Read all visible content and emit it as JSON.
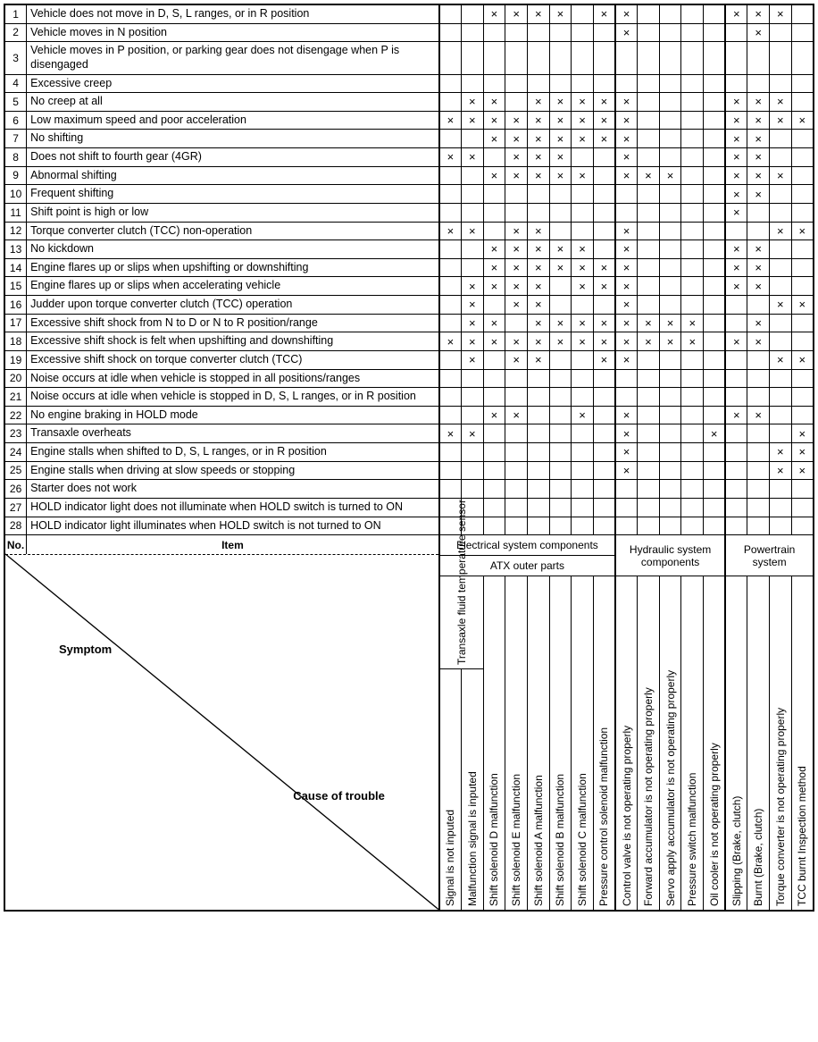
{
  "mark_glyph": "×",
  "colors": {
    "fg": "#000000",
    "bg": "#ffffff"
  },
  "footer": {
    "no_label": "No.",
    "item_label": "Item",
    "symptom_label": "Symptom",
    "cause_label": "Cause of trouble",
    "group1": "Electrical system components",
    "group1_sub": "ATX outer parts",
    "group2": "Hydraulic system components",
    "group3": "Powertrain system"
  },
  "causes": [
    {
      "label": "Signal is not inputed",
      "sub": "Transaxle fluid temperature sensor",
      "group": 1
    },
    {
      "label": "Malfunction signal is inputed",
      "sub": "Transaxle fluid temperature sensor",
      "group": 1
    },
    {
      "label": "Shift solenoid D malfunction",
      "group": 1
    },
    {
      "label": "Shift solenoid E malfunction",
      "group": 1
    },
    {
      "label": "Shift solenoid A malfunction",
      "group": 1
    },
    {
      "label": "Shift solenoid B malfunction",
      "group": 1
    },
    {
      "label": "Shift solenoid C malfunction",
      "group": 1
    },
    {
      "label": "Pressure control solenoid malfunction",
      "group": 1
    },
    {
      "label": "Control valve is not operating properly",
      "group": 2
    },
    {
      "label": "Forward accumulator is not operating properly",
      "group": 2
    },
    {
      "label": "Servo apply accumulator is not operating properly",
      "group": 2
    },
    {
      "label": "Pressure switch malfunction",
      "group": 2
    },
    {
      "label": "Oil cooler is not operating properly",
      "group": 2
    },
    {
      "label": "Slipping (Brake, clutch)",
      "group": 3
    },
    {
      "label": "Burnt (Brake, clutch)",
      "group": 3
    },
    {
      "label": "Torque converter is not operating properly",
      "group": 3
    },
    {
      "label": "TCC burnt Inspection method",
      "group": 3
    }
  ],
  "rows": [
    {
      "n": "1",
      "item": "Vehicle does not move in D, S, L ranges, or in R position",
      "x": [
        0,
        0,
        1,
        1,
        1,
        1,
        0,
        1,
        1,
        0,
        0,
        0,
        0,
        1,
        1,
        1,
        0
      ]
    },
    {
      "n": "2",
      "item": "Vehicle moves in N position",
      "x": [
        0,
        0,
        0,
        0,
        0,
        0,
        0,
        0,
        1,
        0,
        0,
        0,
        0,
        0,
        1,
        0,
        0
      ]
    },
    {
      "n": "3",
      "item": "Vehicle moves in P position, or parking gear does not disengage when P is disengaged",
      "x": [
        0,
        0,
        0,
        0,
        0,
        0,
        0,
        0,
        0,
        0,
        0,
        0,
        0,
        0,
        0,
        0,
        0
      ]
    },
    {
      "n": "4",
      "item": "Excessive creep",
      "x": [
        0,
        0,
        0,
        0,
        0,
        0,
        0,
        0,
        0,
        0,
        0,
        0,
        0,
        0,
        0,
        0,
        0
      ]
    },
    {
      "n": "5",
      "item": "No creep at all",
      "x": [
        0,
        1,
        1,
        0,
        1,
        1,
        1,
        1,
        1,
        0,
        0,
        0,
        0,
        1,
        1,
        1,
        0
      ]
    },
    {
      "n": "6",
      "item": "Low maximum speed and poor acceleration",
      "x": [
        1,
        1,
        1,
        1,
        1,
        1,
        1,
        1,
        1,
        0,
        0,
        0,
        0,
        1,
        1,
        1,
        1
      ]
    },
    {
      "n": "7",
      "item": "No shifting",
      "x": [
        0,
        0,
        1,
        1,
        1,
        1,
        1,
        1,
        1,
        0,
        0,
        0,
        0,
        1,
        1,
        0,
        0
      ]
    },
    {
      "n": "8",
      "item": "Does not shift to fourth gear (4GR)",
      "x": [
        1,
        1,
        0,
        1,
        1,
        1,
        0,
        0,
        1,
        0,
        0,
        0,
        0,
        1,
        1,
        0,
        0
      ]
    },
    {
      "n": "9",
      "item": "Abnormal shifting",
      "x": [
        0,
        0,
        1,
        1,
        1,
        1,
        1,
        0,
        1,
        1,
        1,
        0,
        0,
        1,
        1,
        1,
        0
      ]
    },
    {
      "n": "10",
      "item": "Frequent shifting",
      "x": [
        0,
        0,
        0,
        0,
        0,
        0,
        0,
        0,
        0,
        0,
        0,
        0,
        0,
        1,
        1,
        0,
        0
      ]
    },
    {
      "n": "11",
      "item": "Shift point is high or low",
      "x": [
        0,
        0,
        0,
        0,
        0,
        0,
        0,
        0,
        0,
        0,
        0,
        0,
        0,
        1,
        0,
        0,
        0
      ]
    },
    {
      "n": "12",
      "item": "Torque converter clutch (TCC) non-operation",
      "x": [
        1,
        1,
        0,
        1,
        1,
        0,
        0,
        0,
        1,
        0,
        0,
        0,
        0,
        0,
        0,
        1,
        1
      ]
    },
    {
      "n": "13",
      "item": "No kickdown",
      "x": [
        0,
        0,
        1,
        1,
        1,
        1,
        1,
        0,
        1,
        0,
        0,
        0,
        0,
        1,
        1,
        0,
        0
      ]
    },
    {
      "n": "14",
      "item": "Engine flares up or slips when upshifting or downshifting",
      "x": [
        0,
        0,
        1,
        1,
        1,
        1,
        1,
        1,
        1,
        0,
        0,
        0,
        0,
        1,
        1,
        0,
        0
      ]
    },
    {
      "n": "15",
      "item": "Engine flares up or slips when accelerating vehicle",
      "x": [
        0,
        1,
        1,
        1,
        1,
        0,
        1,
        1,
        1,
        0,
        0,
        0,
        0,
        1,
        1,
        0,
        0
      ]
    },
    {
      "n": "16",
      "item": "Judder upon torque converter clutch (TCC) operation",
      "x": [
        0,
        1,
        0,
        1,
        1,
        0,
        0,
        0,
        1,
        0,
        0,
        0,
        0,
        0,
        0,
        1,
        1
      ]
    },
    {
      "n": "17",
      "item": "Excessive shift shock from N to D or N to R position/range",
      "x": [
        0,
        1,
        1,
        0,
        1,
        1,
        1,
        1,
        1,
        1,
        1,
        1,
        0,
        0,
        1,
        0,
        0
      ]
    },
    {
      "n": "18",
      "item": "Excessive shift shock is felt when upshifting and downshifting",
      "x": [
        1,
        1,
        1,
        1,
        1,
        1,
        1,
        1,
        1,
        1,
        1,
        1,
        0,
        1,
        1,
        0,
        0
      ]
    },
    {
      "n": "19",
      "item": "Excessive shift shock on torque converter clutch (TCC)",
      "x": [
        0,
        1,
        0,
        1,
        1,
        0,
        0,
        1,
        1,
        0,
        0,
        0,
        0,
        0,
        0,
        1,
        1
      ]
    },
    {
      "n": "20",
      "item": "Noise occurs at idle when vehicle is stopped in all positions/ranges",
      "x": [
        0,
        0,
        0,
        0,
        0,
        0,
        0,
        0,
        0,
        0,
        0,
        0,
        0,
        0,
        0,
        0,
        0
      ]
    },
    {
      "n": "21",
      "item": "Noise occurs at idle when vehicle is stopped in D, S, L ranges, or in R position",
      "x": [
        0,
        0,
        0,
        0,
        0,
        0,
        0,
        0,
        0,
        0,
        0,
        0,
        0,
        0,
        0,
        0,
        0
      ]
    },
    {
      "n": "22",
      "item": "No engine braking in HOLD mode",
      "x": [
        0,
        0,
        1,
        1,
        0,
        0,
        1,
        0,
        1,
        0,
        0,
        0,
        0,
        1,
        1,
        0,
        0
      ]
    },
    {
      "n": "23",
      "item": "Transaxle overheats",
      "x": [
        1,
        1,
        0,
        0,
        0,
        0,
        0,
        0,
        1,
        0,
        0,
        0,
        1,
        0,
        0,
        0,
        1
      ]
    },
    {
      "n": "24",
      "item": "Engine stalls when shifted to D, S, L ranges, or in R position",
      "x": [
        0,
        0,
        0,
        0,
        0,
        0,
        0,
        0,
        1,
        0,
        0,
        0,
        0,
        0,
        0,
        1,
        1
      ]
    },
    {
      "n": "25",
      "item": "Engine stalls when driving at slow speeds or stopping",
      "x": [
        0,
        0,
        0,
        0,
        0,
        0,
        0,
        0,
        1,
        0,
        0,
        0,
        0,
        0,
        0,
        1,
        1
      ]
    },
    {
      "n": "26",
      "item": "Starter does not work",
      "x": [
        0,
        0,
        0,
        0,
        0,
        0,
        0,
        0,
        0,
        0,
        0,
        0,
        0,
        0,
        0,
        0,
        0
      ]
    },
    {
      "n": "27",
      "item": "HOLD indicator light does not illuminate when HOLD switch is turned to ON",
      "x": [
        0,
        0,
        0,
        0,
        0,
        0,
        0,
        0,
        0,
        0,
        0,
        0,
        0,
        0,
        0,
        0,
        0
      ]
    },
    {
      "n": "28",
      "item": "HOLD indicator light illuminates when HOLD switch is not turned to ON",
      "x": [
        0,
        0,
        0,
        0,
        0,
        0,
        0,
        0,
        0,
        0,
        0,
        0,
        0,
        0,
        0,
        0,
        0
      ]
    }
  ]
}
